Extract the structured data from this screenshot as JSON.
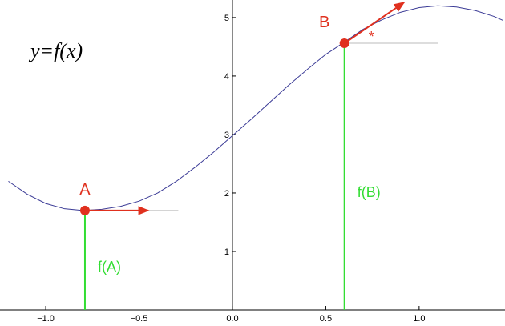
{
  "chart_data": {
    "type": "line",
    "title": "y=f(x)",
    "x": [
      -1.2,
      -1.1,
      -1.0,
      -0.9,
      -0.8,
      -0.7,
      -0.6,
      -0.5,
      -0.4,
      -0.3,
      -0.2,
      -0.1,
      0.0,
      0.1,
      0.2,
      0.3,
      0.4,
      0.5,
      0.6,
      0.7,
      0.8,
      0.9,
      1.0,
      1.1,
      1.2,
      1.3,
      1.4,
      1.45
    ],
    "series": [
      {
        "color": "#3b3b96",
        "values": [
          2.2,
          1.98,
          1.82,
          1.73,
          1.7,
          1.72,
          1.77,
          1.86,
          2.0,
          2.2,
          2.44,
          2.7,
          2.98,
          3.26,
          3.55,
          3.84,
          4.11,
          4.37,
          4.58,
          4.8,
          4.96,
          5.09,
          5.17,
          5.2,
          5.18,
          5.12,
          5.02,
          4.95
        ]
      }
    ],
    "xlim": [
      -1.245,
      1.46
    ],
    "ylim": [
      0,
      5.3
    ],
    "xticks": [
      {
        "value": -1.0,
        "label": "−1.0"
      },
      {
        "value": -0.5,
        "label": "−0.5"
      },
      {
        "value": 0.0,
        "label": "0.0"
      },
      {
        "value": 0.5,
        "label": "0.5"
      },
      {
        "value": 1.0,
        "label": "1.0"
      }
    ],
    "yticks": [
      1,
      2,
      3,
      4,
      5
    ],
    "points": [
      {
        "label": "A",
        "x": -0.79,
        "y": 1.7,
        "value_label": "f(A)",
        "tangent_end": [
          -0.45,
          1.7
        ],
        "reference_end": -0.29
      },
      {
        "label": "B",
        "x": 0.6,
        "y": 4.56,
        "value_label": "f(B)",
        "tangent_end": [
          0.92,
          5.26
        ],
        "reference_end": 1.1,
        "angle_mark": "*"
      }
    ],
    "point_color": "#e0301e",
    "value_line_color": "#33dd33",
    "reference_color": "#bbbbbb"
  }
}
